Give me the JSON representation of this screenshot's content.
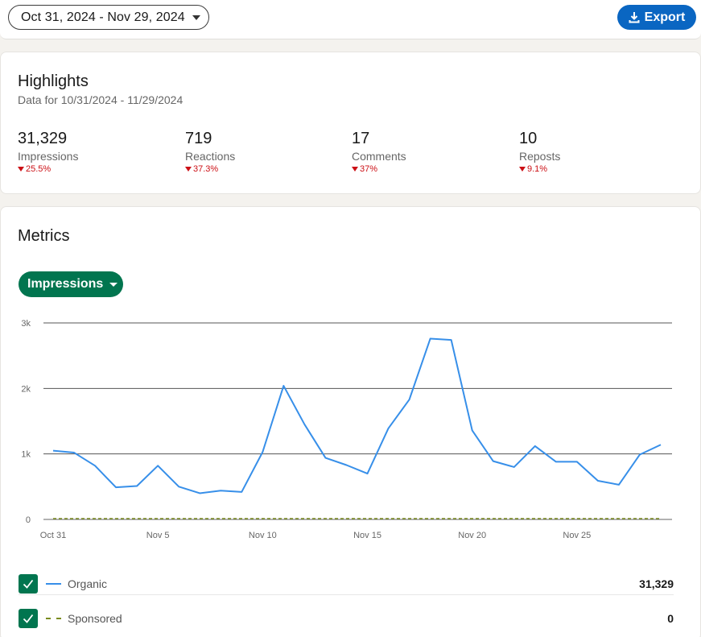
{
  "toolbar": {
    "date_range": "Oct 31, 2024 - Nov 29, 2024",
    "export_label": "Export"
  },
  "highlights": {
    "title": "Highlights",
    "subtitle": "Data for 10/31/2024 - 11/29/2024",
    "stats": [
      {
        "value": "31,329",
        "label": "Impressions",
        "change": "25.5%"
      },
      {
        "value": "719",
        "label": "Reactions",
        "change": "37.3%"
      },
      {
        "value": "17",
        "label": "Comments",
        "change": "37%"
      },
      {
        "value": "10",
        "label": "Reposts",
        "change": "9.1%"
      }
    ]
  },
  "metrics": {
    "title": "Metrics",
    "metric_selector": "Impressions"
  },
  "colors": {
    "organic": "#378fe9",
    "sponsored": "#7a8c1e",
    "accent_green": "#01754f",
    "accent_blue": "#0a66c2",
    "negative": "#cc1016"
  },
  "chart_data": {
    "type": "line",
    "x": [
      "Oct 31",
      "Nov 1",
      "Nov 2",
      "Nov 3",
      "Nov 4",
      "Nov 5",
      "Nov 6",
      "Nov 7",
      "Nov 8",
      "Nov 9",
      "Nov 10",
      "Nov 11",
      "Nov 12",
      "Nov 13",
      "Nov 14",
      "Nov 15",
      "Nov 16",
      "Nov 17",
      "Nov 18",
      "Nov 19",
      "Nov 20",
      "Nov 21",
      "Nov 22",
      "Nov 23",
      "Nov 24",
      "Nov 25",
      "Nov 26",
      "Nov 27",
      "Nov 28",
      "Nov 29"
    ],
    "x_ticks": [
      "Oct 31",
      "Nov 5",
      "Nov 10",
      "Nov 15",
      "Nov 20",
      "Nov 25"
    ],
    "y_ticks": [
      "0",
      "1k",
      "2k",
      "3k"
    ],
    "ylim": [
      0,
      3000
    ],
    "grid": true,
    "series": [
      {
        "name": "Organic",
        "total": "31,329",
        "values": [
          1050,
          1020,
          820,
          490,
          510,
          820,
          500,
          400,
          440,
          420,
          1030,
          2040,
          1450,
          940,
          830,
          700,
          1390,
          1830,
          2760,
          2740,
          1360,
          890,
          800,
          1120,
          880,
          880,
          590,
          530,
          990,
          1140
        ]
      },
      {
        "name": "Sponsored",
        "total": "0",
        "values": [
          0,
          0,
          0,
          0,
          0,
          0,
          0,
          0,
          0,
          0,
          0,
          0,
          0,
          0,
          0,
          0,
          0,
          0,
          0,
          0,
          0,
          0,
          0,
          0,
          0,
          0,
          0,
          0,
          0,
          0
        ]
      }
    ]
  }
}
